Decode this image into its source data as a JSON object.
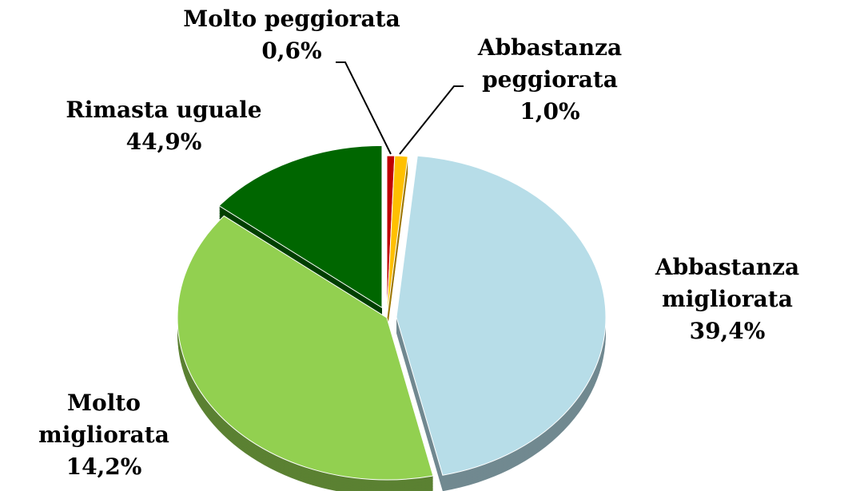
{
  "chart_data": {
    "type": "pie",
    "categories": [
      "Molto peggiorata",
      "Abbastanza peggiorata",
      "Rimasta uguale",
      "Abbastanza migliorata",
      "Molto migliorata"
    ],
    "values": [
      0.6,
      1.0,
      44.9,
      39.4,
      14.2
    ],
    "value_labels": [
      "0,6%",
      "1,0%",
      "44,9%",
      "39,4%",
      "14,2%"
    ],
    "colors": [
      "#c00000",
      "#ffc000",
      "#b7dde8",
      "#92d050",
      "#006600"
    ]
  }
}
